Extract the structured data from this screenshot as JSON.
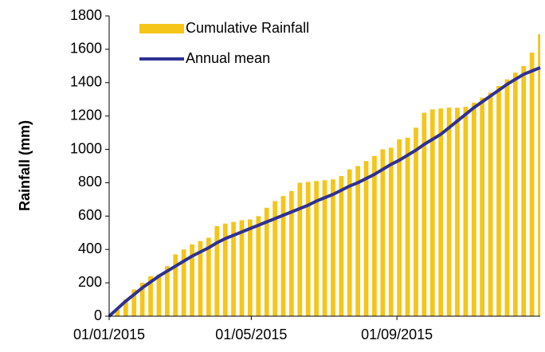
{
  "chart_data": {
    "type": "bar",
    "ylabel": "Rainfall (mm)",
    "x": [
      "2015-01-01",
      "2015-01-08",
      "2015-01-15",
      "2015-01-22",
      "2015-01-29",
      "2015-02-05",
      "2015-02-12",
      "2015-02-19",
      "2015-02-26",
      "2015-03-05",
      "2015-03-12",
      "2015-03-19",
      "2015-03-26",
      "2015-04-02",
      "2015-04-09",
      "2015-04-16",
      "2015-04-23",
      "2015-04-30",
      "2015-05-07",
      "2015-05-14",
      "2015-05-21",
      "2015-05-28",
      "2015-06-04",
      "2015-06-11",
      "2015-06-18",
      "2015-06-25",
      "2015-07-02",
      "2015-07-09",
      "2015-07-16",
      "2015-07-23",
      "2015-07-30",
      "2015-08-06",
      "2015-08-13",
      "2015-08-20",
      "2015-08-27",
      "2015-09-03",
      "2015-09-10",
      "2015-09-17",
      "2015-09-24",
      "2015-10-01",
      "2015-10-08",
      "2015-10-15",
      "2015-10-22",
      "2015-10-29",
      "2015-11-05",
      "2015-11-12",
      "2015-11-19",
      "2015-11-26",
      "2015-12-03",
      "2015-12-10",
      "2015-12-17",
      "2015-12-24",
      "2015-12-31"
    ],
    "series": [
      {
        "name": "Cumulative Rainfall",
        "type": "bar",
        "color": "#f5c518",
        "values": [
          0,
          40,
          100,
          160,
          200,
          240,
          250,
          300,
          370,
          400,
          430,
          450,
          470,
          540,
          555,
          565,
          575,
          580,
          600,
          650,
          690,
          720,
          750,
          800,
          805,
          810,
          815,
          820,
          840,
          880,
          900,
          930,
          960,
          1000,
          1010,
          1060,
          1070,
          1130,
          1220,
          1240,
          1245,
          1250,
          1250,
          1255,
          1280,
          1310,
          1340,
          1380,
          1420,
          1460,
          1500,
          1580,
          1690
        ]
      },
      {
        "name": "Annual mean",
        "type": "line",
        "color": "#2e3192",
        "values": [
          0,
          45,
          90,
          130,
          170,
          205,
          240,
          270,
          300,
          330,
          360,
          385,
          410,
          440,
          465,
          485,
          505,
          525,
          545,
          565,
          585,
          605,
          625,
          645,
          665,
          690,
          710,
          730,
          755,
          780,
          800,
          825,
          850,
          880,
          910,
          935,
          965,
          995,
          1030,
          1060,
          1090,
          1130,
          1170,
          1210,
          1250,
          1285,
          1320,
          1355,
          1390,
          1420,
          1450,
          1470,
          1490
        ]
      }
    ],
    "xlim": [
      "2015-01-01",
      "2015-12-31"
    ],
    "xticks": [
      {
        "value": "2015-01-01",
        "label": "01/01/2015"
      },
      {
        "value": "2015-05-01",
        "label": "01/05/2015"
      },
      {
        "value": "2015-09-01",
        "label": "01/09/2015"
      }
    ],
    "ylim": [
      0,
      1800
    ],
    "yticks": [
      0,
      200,
      400,
      600,
      800,
      1000,
      1200,
      1400,
      1600,
      1800
    ],
    "grid": false,
    "legend": "top-left"
  }
}
